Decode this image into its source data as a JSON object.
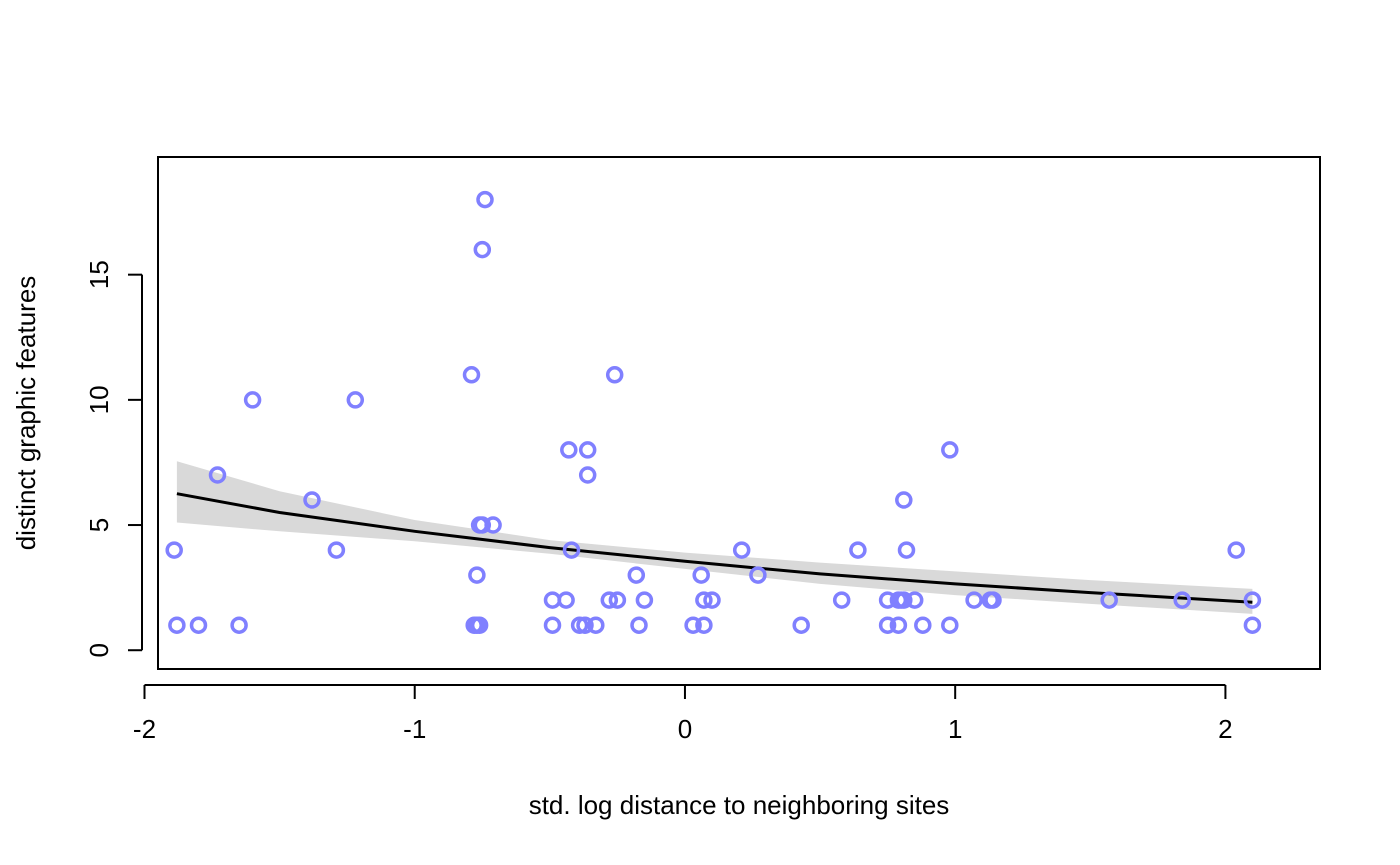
{
  "chart_data": {
    "type": "scatter",
    "title": "",
    "xlabel": "std. log distance to neighboring sites",
    "ylabel": "distinct graphic features",
    "xlim": [
      -1.95,
      2.35
    ],
    "ylim": [
      -0.75,
      19.7
    ],
    "xticks": [
      -2,
      -1,
      0,
      1,
      2
    ],
    "xtick_labels": [
      "-2",
      "-1",
      "0",
      "1",
      "2"
    ],
    "yticks": [
      0,
      5,
      10,
      15
    ],
    "ytick_labels": [
      "0",
      "5",
      "10",
      "15"
    ],
    "grid": false,
    "legend": "none",
    "colors": {
      "points": "#8080ff",
      "line": "#000000",
      "band": "#d9d9d9"
    },
    "points": {
      "x": [
        -1.89,
        -1.88,
        -1.8,
        -1.73,
        -1.65,
        -1.6,
        -1.38,
        -1.29,
        -1.22,
        -0.79,
        -0.78,
        -0.77,
        -0.77,
        -0.76,
        -0.76,
        -0.75,
        -0.75,
        -0.74,
        -0.71,
        -0.49,
        -0.49,
        -0.44,
        -0.43,
        -0.42,
        -0.39,
        -0.37,
        -0.36,
        -0.36,
        -0.33,
        -0.28,
        -0.26,
        -0.25,
        -0.18,
        -0.17,
        -0.15,
        0.03,
        0.06,
        0.07,
        0.07,
        0.1,
        0.21,
        0.27,
        0.43,
        0.58,
        0.64,
        0.75,
        0.75,
        0.79,
        0.79,
        0.8,
        0.81,
        0.81,
        0.82,
        0.85,
        0.88,
        0.98,
        0.98,
        1.07,
        1.13,
        1.14,
        1.57,
        1.84,
        2.04,
        2.1,
        2.1
      ],
      "y": [
        4,
        1,
        1,
        7,
        1,
        10,
        6,
        4,
        10,
        11,
        1,
        1,
        3,
        1,
        5,
        16,
        5,
        18,
        5,
        2,
        1,
        2,
        8,
        4,
        1,
        1,
        7,
        8,
        1,
        2,
        11,
        2,
        3,
        1,
        2,
        1,
        3,
        1,
        2,
        2,
        4,
        3,
        1,
        2,
        4,
        2,
        1,
        1,
        2,
        2,
        2,
        6,
        4,
        2,
        1,
        1,
        8,
        2,
        2,
        2,
        2,
        2,
        4,
        1,
        2
      ]
    },
    "fit_line": {
      "x": [
        -1.88,
        -1.5,
        -1.0,
        -0.5,
        0.0,
        0.5,
        1.0,
        1.5,
        2.1
      ],
      "y": [
        6.25,
        5.5,
        4.75,
        4.1,
        3.55,
        3.05,
        2.65,
        2.3,
        1.92
      ]
    },
    "interval": {
      "x": [
        -1.88,
        -1.5,
        -1.0,
        -0.5,
        0.0,
        0.5,
        1.0,
        1.5,
        2.1
      ],
      "lower": [
        5.1,
        4.75,
        4.35,
        3.85,
        3.25,
        2.65,
        2.2,
        1.85,
        1.45
      ],
      "upper": [
        7.55,
        6.35,
        5.2,
        4.4,
        3.9,
        3.5,
        3.15,
        2.8,
        2.45
      ]
    }
  }
}
